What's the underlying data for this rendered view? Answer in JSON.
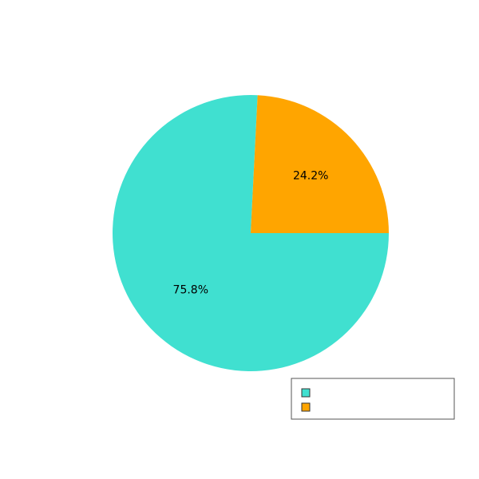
{
  "chart_data": {
    "type": "pie",
    "title": "",
    "slices": [
      {
        "label": "",
        "value": 75.8,
        "display": "75.8%",
        "color": "#40E0D0"
      },
      {
        "label": "",
        "value": 24.2,
        "display": "24.2%",
        "color": "#FFA500"
      }
    ],
    "start_angle_deg": 0,
    "direction": "clockwise",
    "legend": {
      "placement": "bottom-right",
      "entries": [
        "",
        ""
      ]
    },
    "edge_color": "#333333"
  }
}
